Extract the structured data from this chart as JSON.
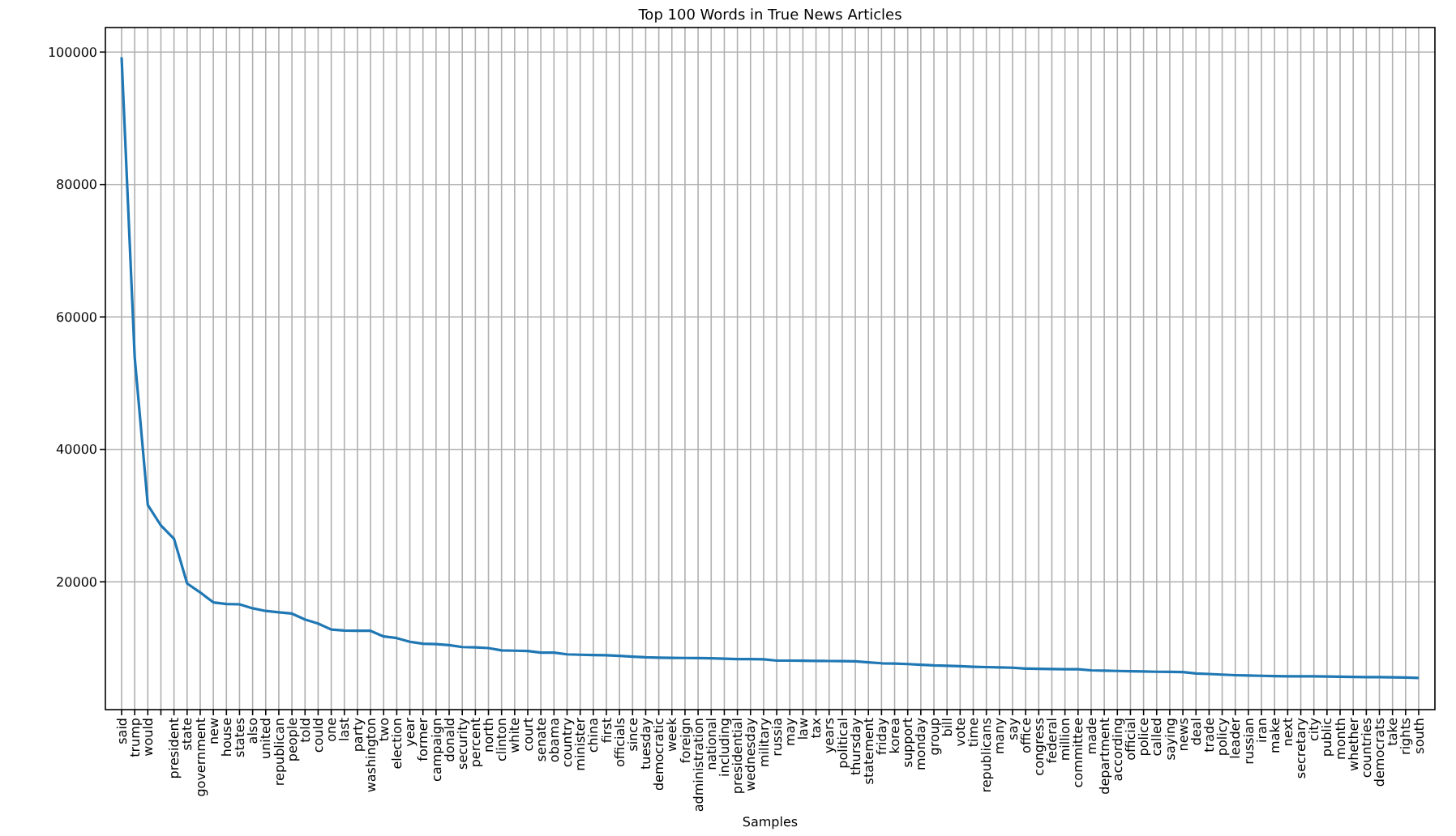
{
  "chart_data": {
    "type": "line",
    "title": "Top 100 Words in True News Articles",
    "xlabel": "Samples",
    "categories": [
      "said",
      "trump",
      "would",
      null,
      "president",
      "state",
      "government",
      "new",
      "house",
      "states",
      "also",
      "united",
      "republican",
      "people",
      "told",
      "could",
      "one",
      "last",
      "party",
      "washington",
      "two",
      "election",
      "year",
      "former",
      "campaign",
      "donald",
      "security",
      "percent",
      "north",
      "clinton",
      "white",
      "court",
      "senate",
      "obama",
      "country",
      "minister",
      "china",
      "first",
      "officials",
      "since",
      "tuesday",
      "democratic",
      "week",
      "foreign",
      "administration",
      "national",
      "including",
      "presidential",
      "wednesday",
      "military",
      "russia",
      "may",
      "law",
      "tax",
      "years",
      "political",
      "thursday",
      "statement",
      "friday",
      "korea",
      "support",
      "monday",
      "group",
      "bill",
      "vote",
      "time",
      "republicans",
      "many",
      "say",
      "office",
      "congress",
      "federal",
      "million",
      "committee",
      "made",
      "department",
      "according",
      "official",
      "police",
      "called",
      "saying",
      "news",
      "deal",
      "trade",
      "policy",
      "leader",
      "russian",
      "iran",
      "make",
      "next",
      "secretary",
      "city",
      "public",
      "month",
      "whether",
      "countries",
      "democrats",
      "take",
      "rights",
      "south"
    ],
    "series": [
      {
        "color": "#1f77b4",
        "values": [
          99200,
          53900,
          31600,
          28500,
          26500,
          19750,
          18400,
          16900,
          16650,
          16600,
          16000,
          15600,
          15400,
          15200,
          14300,
          13700,
          12800,
          12650,
          12600,
          12600,
          11750,
          11500,
          10950,
          10650,
          10600,
          10450,
          10150,
          10100,
          10000,
          9650,
          9600,
          9550,
          9300,
          9300,
          9050,
          8990,
          8950,
          8900,
          8830,
          8700,
          8600,
          8550,
          8520,
          8500,
          8480,
          8450,
          8400,
          8340,
          8340,
          8300,
          8100,
          8100,
          8080,
          8060,
          8040,
          8020,
          8000,
          7850,
          7700,
          7650,
          7580,
          7480,
          7380,
          7330,
          7250,
          7180,
          7120,
          7080,
          7030,
          6900,
          6860,
          6840,
          6810,
          6790,
          6630,
          6590,
          6540,
          6500,
          6460,
          6420,
          6400,
          6380,
          6150,
          6080,
          5990,
          5900,
          5850,
          5810,
          5750,
          5730,
          5730,
          5720,
          5700,
          5680,
          5650,
          5620,
          5600,
          5570,
          5540,
          5490
        ]
      }
    ],
    "ylim": [
      700,
      103700
    ],
    "yticks": [
      20000,
      40000,
      60000,
      80000,
      100000
    ],
    "grid": true,
    "marker": "none",
    "line_style": "solid"
  }
}
